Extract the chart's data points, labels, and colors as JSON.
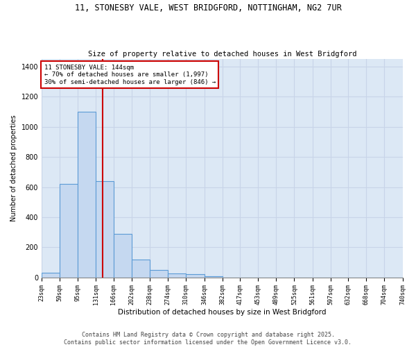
{
  "title_line1": "11, STONESBY VALE, WEST BRIDGFORD, NOTTINGHAM, NG2 7UR",
  "title_line2": "Size of property relative to detached houses in West Bridgford",
  "xlabel": "Distribution of detached houses by size in West Bridgford",
  "ylabel": "Number of detached properties",
  "bin_edges": [
    23,
    59,
    95,
    131,
    166,
    202,
    238,
    274,
    310,
    346,
    382,
    417,
    453,
    489,
    525,
    561,
    597,
    632,
    668,
    704,
    740
  ],
  "bar_heights": [
    30,
    620,
    1100,
    640,
    290,
    120,
    50,
    25,
    20,
    10,
    0,
    0,
    0,
    0,
    0,
    0,
    0,
    0,
    0,
    0
  ],
  "bar_color": "#c5d8f0",
  "bar_edge_color": "#5b9bd5",
  "property_size": 144,
  "vline_color": "#cc0000",
  "annotation_text": "11 STONESBY VALE: 144sqm\n← 70% of detached houses are smaller (1,997)\n30% of semi-detached houses are larger (846) →",
  "annotation_box_color": "white",
  "annotation_box_edge_color": "#cc0000",
  "ylim": [
    0,
    1450
  ],
  "yticks": [
    0,
    200,
    400,
    600,
    800,
    1000,
    1200,
    1400
  ],
  "grid_color": "#c8d4e8",
  "background_color": "#dce8f5",
  "footer_text": "Contains HM Land Registry data © Crown copyright and database right 2025.\nContains public sector information licensed under the Open Government Licence v3.0.",
  "title_fontsize": 8.5,
  "subtitle_fontsize": 7.5,
  "annotation_fontsize": 6.5,
  "ylabel_fontsize": 7,
  "xlabel_fontsize": 7.5,
  "tick_fontsize": 6,
  "ytick_fontsize": 7,
  "footer_fontsize": 6
}
